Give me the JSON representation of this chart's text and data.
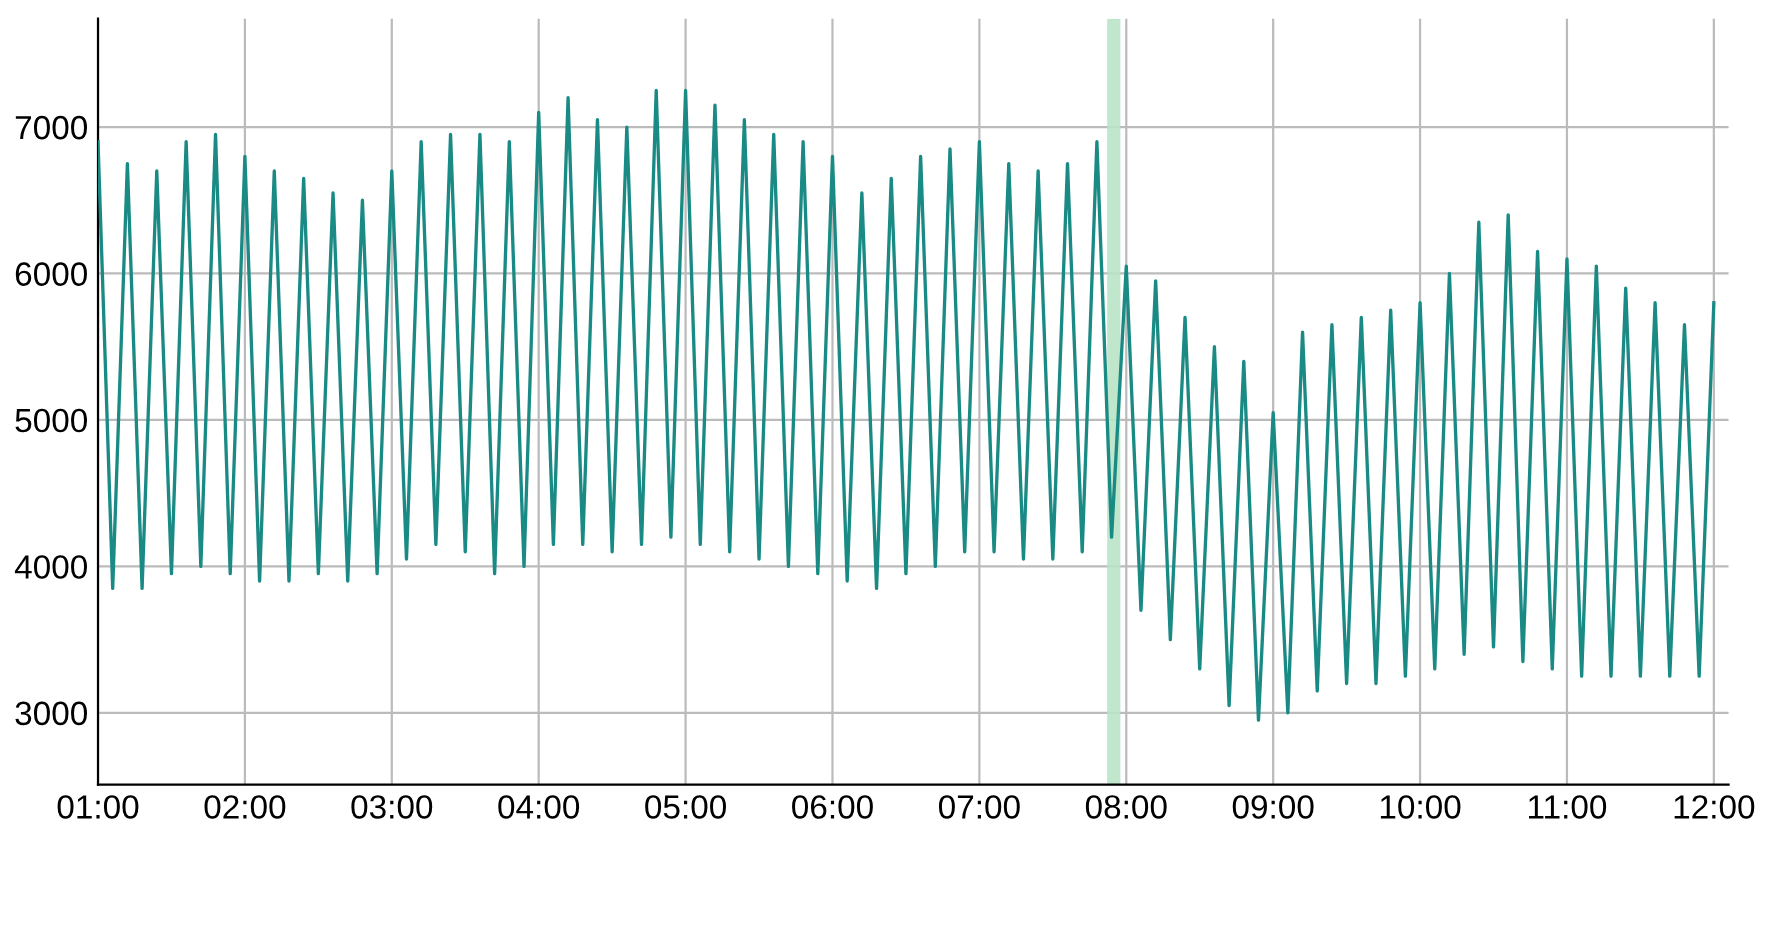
{
  "chart_data": {
    "type": "line",
    "xlim": [
      1.0,
      12.1
    ],
    "ylim": [
      2510,
      7740
    ],
    "xticks": [
      {
        "value": 1,
        "label": "01:00"
      },
      {
        "value": 2,
        "label": "02:00"
      },
      {
        "value": 3,
        "label": "03:00"
      },
      {
        "value": 4,
        "label": "04:00"
      },
      {
        "value": 5,
        "label": "05:00"
      },
      {
        "value": 6,
        "label": "06:00"
      },
      {
        "value": 7,
        "label": "07:00"
      },
      {
        "value": 8,
        "label": "08:00"
      },
      {
        "value": 9,
        "label": "09:00"
      },
      {
        "value": 10,
        "label": "10:00"
      },
      {
        "value": 11,
        "label": "11:00"
      },
      {
        "value": 12,
        "label": "12:00"
      }
    ],
    "yticks": [
      3000,
      4000,
      5000,
      6000,
      7000
    ],
    "grid": true,
    "legend": false,
    "marker": "none",
    "line_style": "solid",
    "bands": [
      {
        "axis": "x",
        "from": 7.87,
        "to": 7.96,
        "color": "#b9e3c6"
      }
    ],
    "series": [
      {
        "color": "#1a8a85",
        "x": [
          1.0,
          1.1,
          1.2,
          1.3,
          1.4,
          1.5,
          1.6,
          1.7,
          1.8,
          1.9,
          2.0,
          2.1,
          2.2,
          2.3,
          2.4,
          2.5,
          2.6,
          2.7,
          2.8,
          2.9,
          3.0,
          3.1,
          3.2,
          3.3,
          3.4,
          3.5,
          3.6,
          3.7,
          3.8,
          3.9,
          4.0,
          4.1,
          4.2,
          4.3,
          4.4,
          4.5,
          4.6,
          4.7,
          4.8,
          4.9,
          5.0,
          5.1,
          5.2,
          5.3,
          5.4,
          5.5,
          5.6,
          5.7,
          5.8,
          5.9,
          6.0,
          6.1,
          6.2,
          6.3,
          6.4,
          6.5,
          6.6,
          6.7,
          6.8,
          6.9,
          7.0,
          7.1,
          7.2,
          7.3,
          7.4,
          7.5,
          7.6,
          7.7,
          7.8,
          7.9,
          8.0,
          8.1,
          8.2,
          8.3,
          8.4,
          8.5,
          8.6,
          8.7,
          8.8,
          8.9,
          9.0,
          9.1,
          9.2,
          9.3,
          9.4,
          9.5,
          9.6,
          9.7,
          9.8,
          9.9,
          10.0,
          10.1,
          10.2,
          10.3,
          10.4,
          10.5,
          10.6,
          10.7,
          10.8,
          10.9,
          11.0,
          11.1,
          11.2,
          11.3,
          11.4,
          11.5,
          11.6,
          11.7,
          11.8,
          11.9,
          12.0
        ],
        "values": [
          6900,
          3850,
          6750,
          3850,
          6700,
          3950,
          6900,
          4000,
          6950,
          3950,
          6800,
          3900,
          6700,
          3900,
          6650,
          3950,
          6550,
          3900,
          6500,
          3950,
          6700,
          4050,
          6900,
          4150,
          6950,
          4100,
          6950,
          3950,
          6900,
          4000,
          7100,
          4150,
          7200,
          4150,
          7050,
          4100,
          7000,
          4150,
          7250,
          4200,
          7250,
          4150,
          7150,
          4100,
          7050,
          4050,
          6950,
          4000,
          6900,
          3950,
          6800,
          3900,
          6550,
          3850,
          6650,
          3950,
          6800,
          4000,
          6850,
          4100,
          6900,
          4100,
          6750,
          4050,
          6700,
          4050,
          6750,
          4100,
          6900,
          4200,
          6050,
          3700,
          5950,
          3500,
          5700,
          3300,
          5500,
          3050,
          5400,
          2950,
          5050,
          3000,
          5600,
          3150,
          5650,
          3200,
          5700,
          3200,
          5750,
          3250,
          5800,
          3300,
          6000,
          3400,
          6350,
          3450,
          6400,
          3350,
          6150,
          3300,
          6100,
          3250,
          6050,
          3250,
          5900,
          3250,
          5800,
          3250,
          5650,
          3250,
          5800
        ]
      }
    ]
  }
}
